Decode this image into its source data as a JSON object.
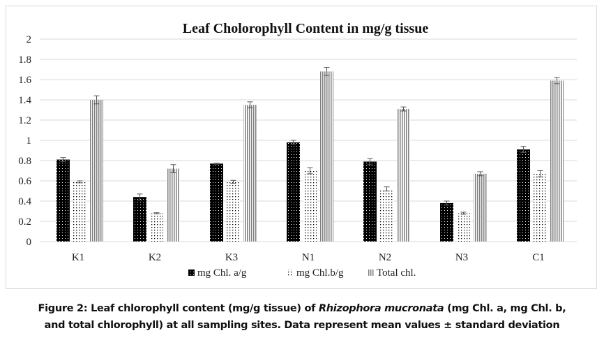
{
  "chart_data": {
    "type": "bar",
    "title": "Leaf Cholorophyll Content in mg/g tissue",
    "xlabel": "",
    "ylabel": "",
    "ylim": [
      0,
      2
    ],
    "yticks": [
      "0",
      "0.2",
      "0.4",
      "0.6",
      "0.8",
      "1",
      "1.2",
      "1.4",
      "1.6",
      "1.8",
      "2"
    ],
    "ytick_values": [
      0,
      0.2,
      0.4,
      0.6,
      0.8,
      1,
      1.2,
      1.4,
      1.6,
      1.8,
      2
    ],
    "grid": true,
    "legend_position": "bottom",
    "categories": [
      "K1",
      "K2",
      "K3",
      "N1",
      "N2",
      "N3",
      "C1"
    ],
    "series": [
      {
        "name": "mg Chl. a/g",
        "pattern": "dense-dots-black",
        "values": [
          0.81,
          0.44,
          0.77,
          0.98,
          0.79,
          0.38,
          0.91
        ],
        "errors": [
          0.02,
          0.03,
          0.005,
          0.02,
          0.03,
          0.02,
          0.03
        ]
      },
      {
        "name": "mg Chl.b/g",
        "pattern": "sparse-dots",
        "values": [
          0.59,
          0.28,
          0.59,
          0.7,
          0.52,
          0.28,
          0.67
        ],
        "errors": [
          0.01,
          0.005,
          0.015,
          0.03,
          0.02,
          0.01,
          0.03
        ]
      },
      {
        "name": "Total chl.",
        "pattern": "vertical-lines",
        "values": [
          1.4,
          0.72,
          1.35,
          1.68,
          1.31,
          0.67,
          1.59
        ],
        "errors": [
          0.04,
          0.04,
          0.03,
          0.04,
          0.02,
          0.02,
          0.03
        ]
      }
    ]
  },
  "caption": {
    "prefix": "Figure 2: Leaf chlorophyll content (mg/g tissue) of ",
    "species": "Rhizophora mucronata",
    "suffix_line1": " (mg Chl. a, mg Chl. b,",
    "line2": "and total chlorophyll) at all sampling sites. Data represent mean values ± standard deviation"
  },
  "colors": {
    "grid": "#d9d9d9",
    "bar_dark": "#000000",
    "bar_line": "#7f7f7f",
    "text": "#222222"
  }
}
